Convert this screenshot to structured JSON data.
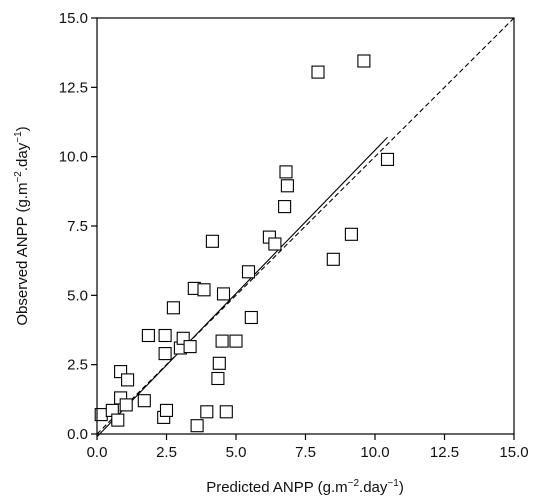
{
  "chart_data": {
    "type": "scatter",
    "title": "",
    "xlabel": {
      "prefix": "Predicted ANPP (g.m",
      "sup1": "−2",
      "mid": ".day",
      "sup2": "−1",
      "suffix": ")"
    },
    "ylabel": {
      "prefix": "Observed ANPP (g.m",
      "sup1": "−2",
      "mid": ".day",
      "sup2": "−1",
      "suffix": ")"
    },
    "xlim": [
      0,
      15
    ],
    "ylim": [
      0,
      15
    ],
    "xticks": [
      "0.0",
      "2.5",
      "5.0",
      "7.5",
      "10.0",
      "12.5",
      "15.0"
    ],
    "yticks": [
      "0.0",
      "2.5",
      "5.0",
      "7.5",
      "10.0",
      "12.5",
      "15.0"
    ],
    "tick_values": [
      0,
      2.5,
      5,
      7.5,
      10,
      12.5,
      15
    ],
    "grid": false,
    "marker": "open-square",
    "points": [
      [
        0.15,
        0.7
      ],
      [
        0.55,
        0.85
      ],
      [
        0.75,
        0.5
      ],
      [
        0.85,
        1.3
      ],
      [
        0.85,
        2.25
      ],
      [
        1.1,
        1.95
      ],
      [
        1.05,
        1.05
      ],
      [
        1.7,
        1.2
      ],
      [
        1.85,
        3.55
      ],
      [
        2.4,
        0.6
      ],
      [
        2.45,
        3.55
      ],
      [
        2.5,
        0.85
      ],
      [
        2.45,
        2.9
      ],
      [
        2.75,
        4.55
      ],
      [
        3.0,
        3.1
      ],
      [
        3.1,
        3.45
      ],
      [
        3.35,
        3.15
      ],
      [
        3.5,
        5.25
      ],
      [
        3.6,
        0.3
      ],
      [
        3.85,
        5.2
      ],
      [
        3.95,
        0.8
      ],
      [
        4.15,
        6.95
      ],
      [
        4.35,
        2.0
      ],
      [
        4.4,
        2.55
      ],
      [
        4.5,
        3.35
      ],
      [
        4.55,
        5.05
      ],
      [
        4.65,
        0.8
      ],
      [
        5.0,
        3.35
      ],
      [
        5.45,
        5.85
      ],
      [
        5.55,
        4.2
      ],
      [
        6.2,
        7.1
      ],
      [
        6.4,
        6.85
      ],
      [
        6.75,
        8.2
      ],
      [
        6.8,
        9.45
      ],
      [
        6.85,
        8.95
      ],
      [
        7.95,
        13.05
      ],
      [
        8.5,
        6.3
      ],
      [
        9.15,
        7.2
      ],
      [
        9.6,
        13.45
      ],
      [
        10.45,
        9.9
      ]
    ],
    "series": [
      {
        "style": "solid",
        "color": "#000000",
        "x": [
          0.0,
          10.45
        ],
        "y": [
          -0.1,
          10.7
        ]
      },
      {
        "style": "dashed",
        "color": "#000000",
        "x": [
          0.0,
          15.0
        ],
        "y": [
          0.0,
          15.0
        ]
      }
    ]
  }
}
